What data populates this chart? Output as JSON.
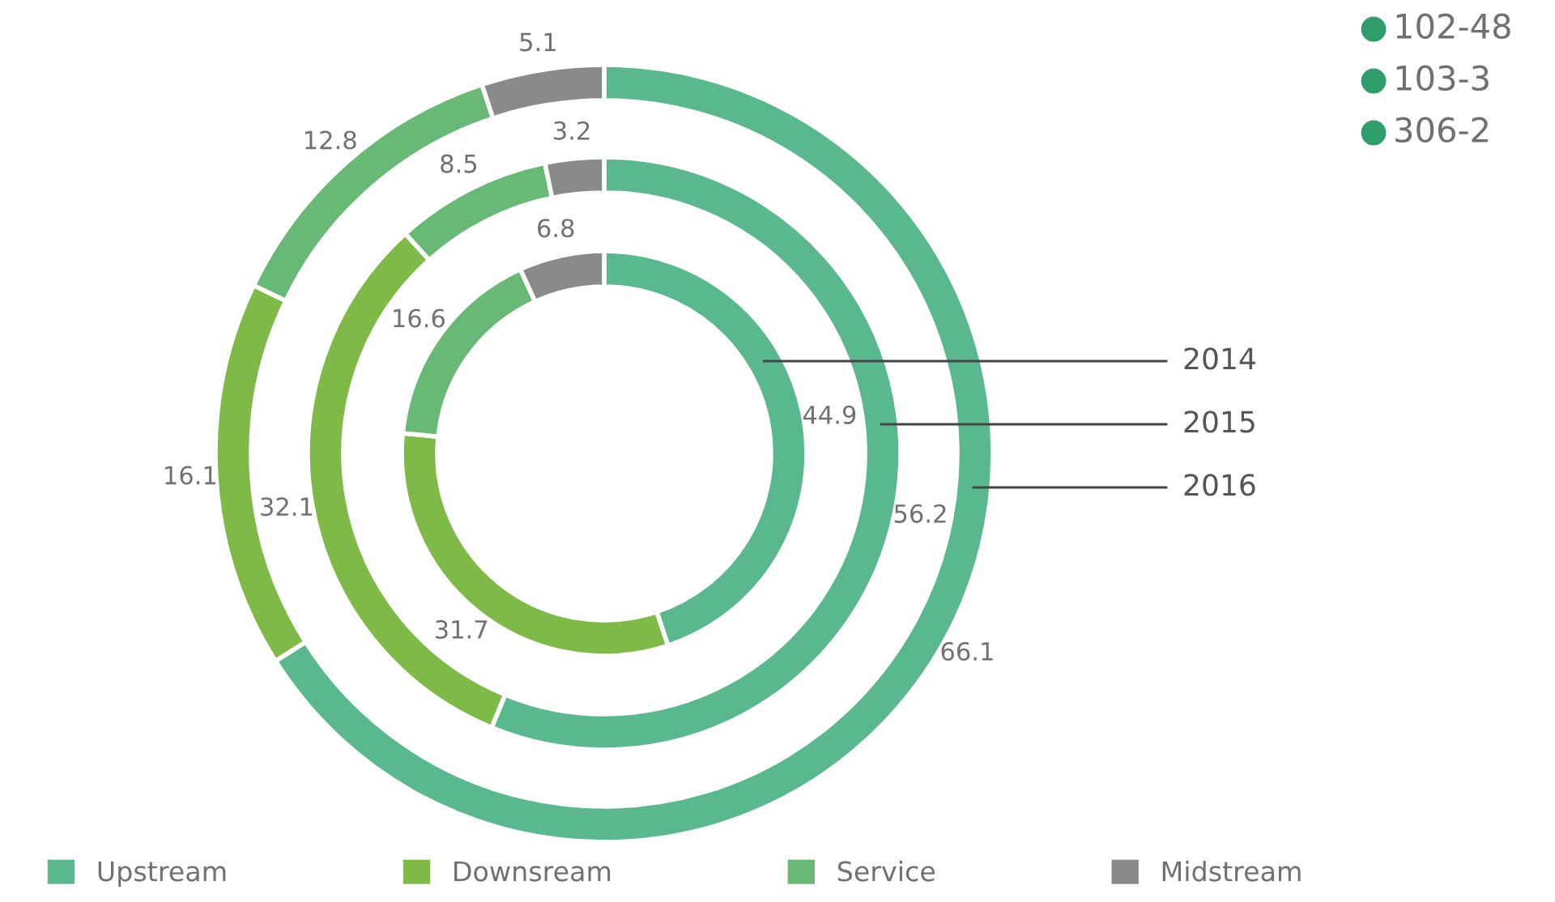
{
  "chart_data": {
    "type": "donut",
    "categories": [
      "Upstream",
      "Downsream",
      "Service",
      "Midstream"
    ],
    "colors": [
      "#5ab88f",
      "#7fba48",
      "#68b876",
      "#8a8a8a"
    ],
    "series": [
      {
        "name": "2014",
        "values": [
          44.9,
          31.7,
          16.6,
          6.8
        ]
      },
      {
        "name": "2015",
        "values": [
          56.2,
          32.1,
          8.5,
          3.2
        ]
      },
      {
        "name": "2016",
        "values": [
          66.1,
          16.1,
          12.8,
          5.1
        ]
      }
    ],
    "data_labels": true,
    "legend": "bottom",
    "annotations": [
      "102-48",
      "103-3",
      "306-2"
    ]
  }
}
